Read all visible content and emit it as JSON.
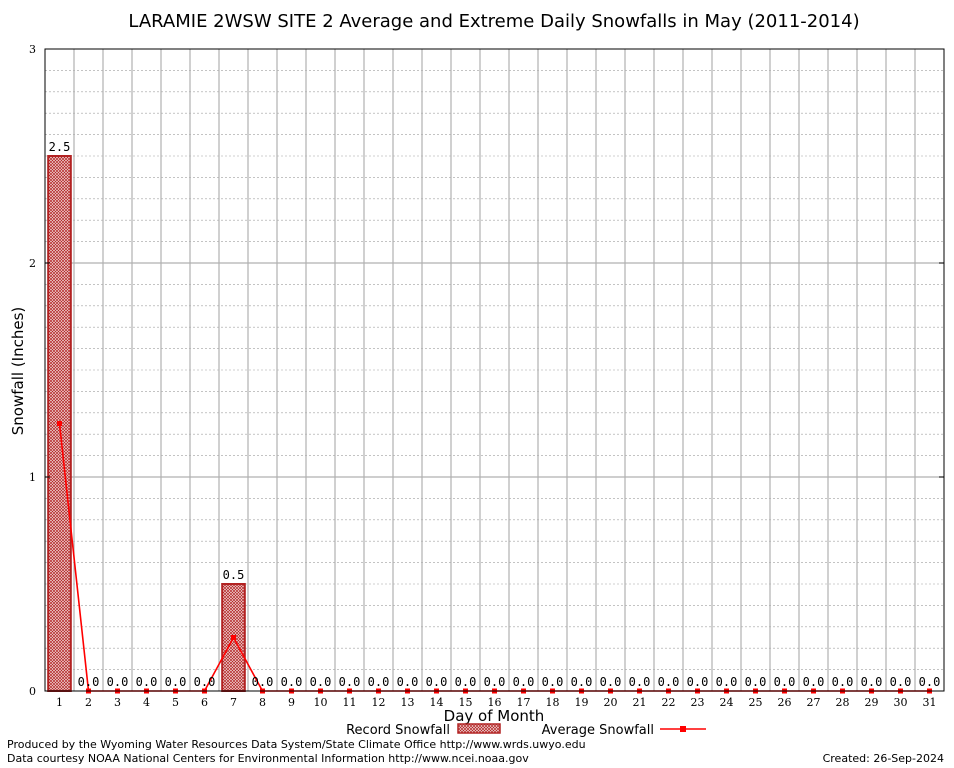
{
  "chart_data": {
    "type": "bar",
    "title": "LARAMIE 2WSW SITE 2 Average and Extreme Daily Snowfalls in May (2011-2014)",
    "xlabel": "Day of Month",
    "ylabel": "Snowfall (Inches)",
    "ylim": [
      0,
      3
    ],
    "yticks": [
      "0",
      "1",
      "2",
      "3"
    ],
    "grid": true,
    "categories": [
      "1",
      "2",
      "3",
      "4",
      "5",
      "6",
      "7",
      "8",
      "9",
      "10",
      "11",
      "12",
      "13",
      "14",
      "15",
      "16",
      "17",
      "18",
      "19",
      "20",
      "21",
      "22",
      "23",
      "24",
      "25",
      "26",
      "27",
      "28",
      "29",
      "30",
      "31"
    ],
    "series": [
      {
        "name": "Record Snowfall",
        "kind": "bar",
        "color": "#b22222",
        "values": [
          2.5,
          0,
          0,
          0,
          0,
          0,
          0.5,
          0,
          0,
          0,
          0,
          0,
          0,
          0,
          0,
          0,
          0,
          0,
          0,
          0,
          0,
          0,
          0,
          0,
          0,
          0,
          0,
          0,
          0,
          0,
          0
        ],
        "labels": [
          "2.5",
          "0.0",
          "0.0",
          "0.0",
          "0.0",
          "0.0",
          "0.5",
          "0.0",
          "0.0",
          "0.0",
          "0.0",
          "0.0",
          "0.0",
          "0.0",
          "0.0",
          "0.0",
          "0.0",
          "0.0",
          "0.0",
          "0.0",
          "0.0",
          "0.0",
          "0.0",
          "0.0",
          "0.0",
          "0.0",
          "0.0",
          "0.0",
          "0.0",
          "0.0",
          "0.0"
        ]
      },
      {
        "name": "Average Snowfall",
        "kind": "line",
        "color": "#ff0000",
        "values": [
          1.25,
          0,
          0,
          0,
          0,
          0,
          0.25,
          0,
          0,
          0,
          0,
          0,
          0,
          0,
          0,
          0,
          0,
          0,
          0,
          0,
          0,
          0,
          0,
          0,
          0,
          0,
          0,
          0,
          0,
          0,
          0
        ]
      }
    ],
    "legend": {
      "placement": "bottom"
    }
  },
  "footer": {
    "produced_by": "Produced by the Wyoming Water Resources Data System/State Climate Office http://www.wrds.uwyo.edu",
    "data_courtesy": "Data courtesy NOAA National Centers for Environmental Information http://www.ncei.noaa.gov",
    "created": "Created:  26-Sep-2024"
  }
}
